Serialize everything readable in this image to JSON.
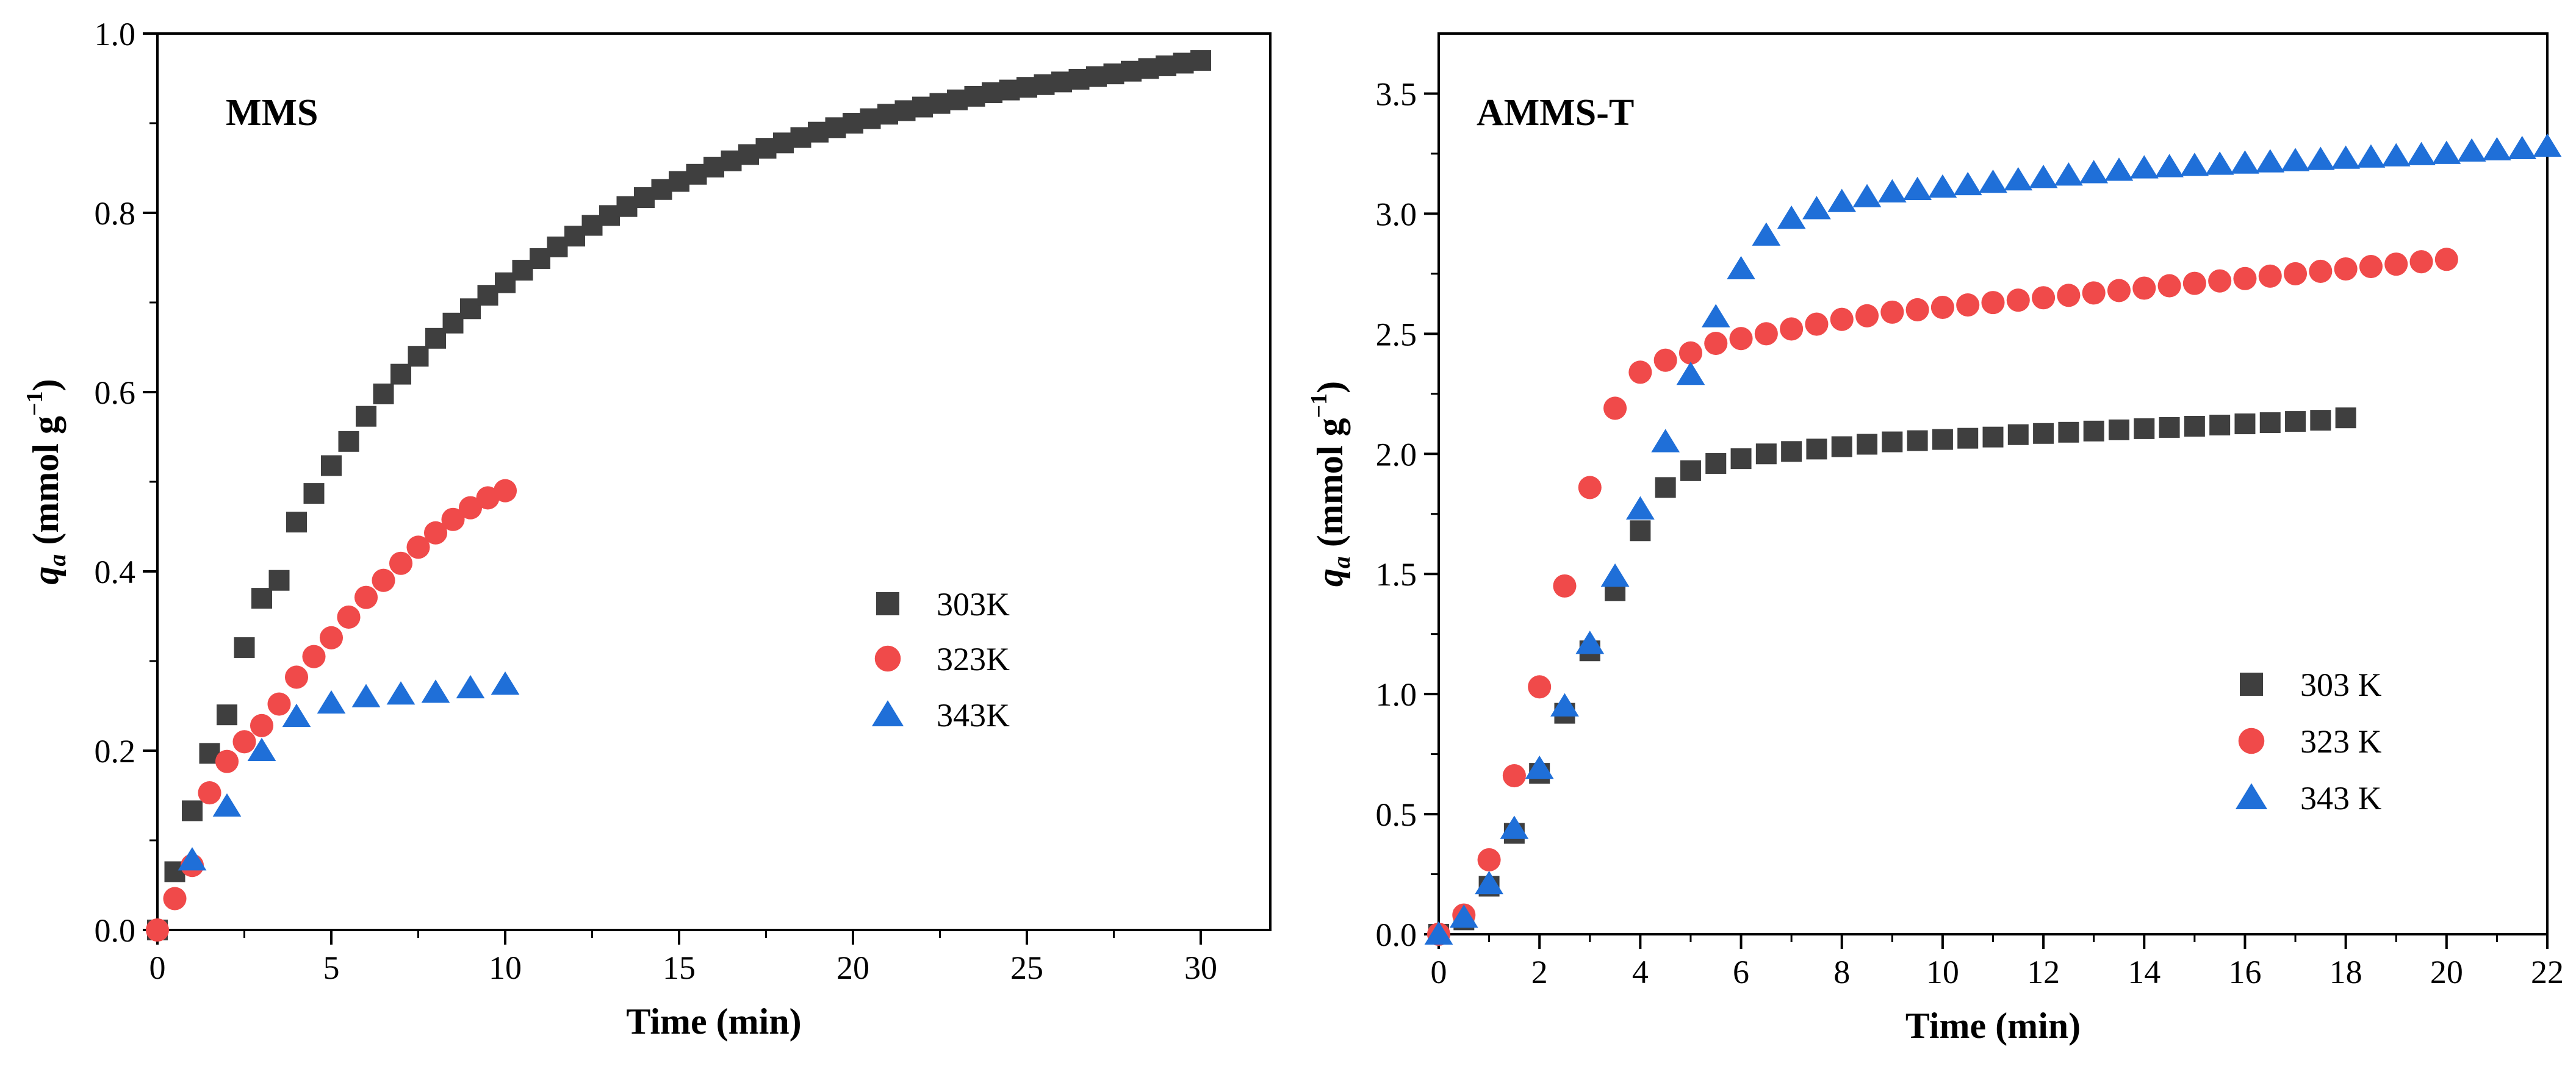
{
  "chart_data": [
    {
      "type": "scatter",
      "title": "MMS",
      "xlabel": "Time (min)",
      "ylabel_main": "q",
      "ylabel_sub": "a",
      "ylabel_unit_prefix": " (mmol g",
      "ylabel_unit_sup": "−1",
      "ylabel_unit_suffix": ")",
      "xlim": [
        0,
        32
      ],
      "ylim": [
        0,
        1.0
      ],
      "xticks": [
        0,
        5,
        10,
        15,
        20,
        25,
        30
      ],
      "xtick_labels": [
        "0",
        "5",
        "10",
        "15",
        "20",
        "25",
        "30"
      ],
      "yticks": [
        0,
        0.2,
        0.4,
        0.6,
        0.8,
        1.0
      ],
      "ytick_labels": [
        "0.0",
        "0.2",
        "0.4",
        "0.6",
        "0.8",
        "1.0"
      ],
      "legend_position": "center-right",
      "series": [
        {
          "name": "303K",
          "marker": "square",
          "color": "#3f3f3f",
          "x": [
            0,
            0.5,
            1,
            1.5,
            2,
            2.5,
            3,
            3.5,
            4,
            4.5,
            5,
            5.5,
            6,
            6.5,
            7,
            7.5,
            8,
            8.5,
            9,
            9.5,
            10,
            10.5,
            11,
            11.5,
            12,
            12.5,
            13,
            13.5,
            14,
            14.5,
            15,
            15.5,
            16,
            16.5,
            17,
            17.5,
            18,
            18.5,
            19,
            19.5,
            20,
            20.5,
            21,
            21.5,
            22,
            22.5,
            23,
            23.5,
            24,
            24.5,
            25,
            25.5,
            26,
            26.5,
            27,
            27.5,
            28,
            28.5,
            29,
            29.5,
            30
          ],
          "y": [
            0,
            0.065,
            0.133,
            0.197,
            0.24,
            0.315,
            0.37,
            0.39,
            0.455,
            0.487,
            0.518,
            0.545,
            0.573,
            0.598,
            0.62,
            0.64,
            0.66,
            0.677,
            0.693,
            0.708,
            0.722,
            0.736,
            0.749,
            0.762,
            0.774,
            0.786,
            0.797,
            0.807,
            0.817,
            0.826,
            0.835,
            0.843,
            0.851,
            0.858,
            0.865,
            0.872,
            0.878,
            0.884,
            0.89,
            0.895,
            0.9,
            0.905,
            0.91,
            0.914,
            0.918,
            0.922,
            0.926,
            0.93,
            0.934,
            0.937,
            0.94,
            0.943,
            0.946,
            0.949,
            0.952,
            0.955,
            0.958,
            0.961,
            0.964,
            0.967,
            0.97
          ]
        },
        {
          "name": "323K",
          "marker": "circle",
          "color": "#f04a4a",
          "x": [
            0,
            0.5,
            1,
            1.5,
            2,
            2.5,
            3,
            3.5,
            4,
            4.5,
            5,
            5.5,
            6,
            6.5,
            7,
            7.5,
            8,
            8.5,
            9,
            9.5,
            10
          ],
          "y": [
            0,
            0.035,
            0.072,
            0.153,
            0.188,
            0.21,
            0.228,
            0.252,
            0.282,
            0.305,
            0.326,
            0.349,
            0.371,
            0.39,
            0.409,
            0.427,
            0.443,
            0.458,
            0.471,
            0.482,
            0.49
          ]
        },
        {
          "name": "343K",
          "marker": "triangle",
          "color": "#1f6fd8",
          "x": [
            1,
            2,
            3,
            4,
            5,
            6,
            7,
            8,
            9,
            10
          ],
          "y": [
            0.078,
            0.138,
            0.2,
            0.238,
            0.253,
            0.26,
            0.263,
            0.265,
            0.27,
            0.274
          ]
        }
      ]
    },
    {
      "type": "scatter",
      "title": "AMMS-T",
      "xlabel": "Time (min)",
      "ylabel_main": "q",
      "ylabel_sub": "a",
      "ylabel_unit_prefix": " (mmol g",
      "ylabel_unit_sup": "−1",
      "ylabel_unit_suffix": ")",
      "xlim": [
        0,
        22
      ],
      "ylim": [
        0,
        3.75
      ],
      "xticks": [
        0,
        2,
        4,
        6,
        8,
        10,
        12,
        14,
        16,
        18,
        20,
        22
      ],
      "xtick_labels": [
        "0",
        "2",
        "4",
        "6",
        "8",
        "10",
        "12",
        "14",
        "16",
        "18",
        "20",
        "22"
      ],
      "yticks": [
        0,
        0.5,
        1.0,
        1.5,
        2.0,
        2.5,
        3.0,
        3.5
      ],
      "ytick_labels": [
        "0.0",
        "0.5",
        "1.0",
        "1.5",
        "2.0",
        "2.5",
        "3.0",
        "3.5"
      ],
      "legend_position": "bottom-right",
      "series": [
        {
          "name": "303 K",
          "marker": "square",
          "color": "#3f3f3f",
          "x": [
            0,
            0.5,
            1,
            1.5,
            2,
            2.5,
            3,
            3.5,
            4,
            4.5,
            5,
            5.5,
            6,
            6.5,
            7,
            7.5,
            8,
            8.5,
            9,
            9.5,
            10,
            10.5,
            11,
            11.5,
            12,
            12.5,
            13,
            13.5,
            14,
            14.5,
            15,
            15.5,
            16,
            16.5,
            17,
            17.5,
            18
          ],
          "y": [
            0,
            0.06,
            0.2,
            0.42,
            0.67,
            0.92,
            1.18,
            1.43,
            1.68,
            1.86,
            1.93,
            1.96,
            1.98,
            2.0,
            2.01,
            2.02,
            2.03,
            2.04,
            2.05,
            2.055,
            2.06,
            2.065,
            2.07,
            2.08,
            2.085,
            2.09,
            2.095,
            2.1,
            2.105,
            2.11,
            2.115,
            2.12,
            2.125,
            2.13,
            2.135,
            2.14,
            2.15
          ]
        },
        {
          "name": "323 K",
          "marker": "circle",
          "color": "#f04a4a",
          "x": [
            0,
            0.5,
            1,
            1.5,
            2,
            2.5,
            3,
            3.5,
            4,
            4.5,
            5,
            5.5,
            6,
            6.5,
            7,
            7.5,
            8,
            8.5,
            9,
            9.5,
            10,
            10.5,
            11,
            11.5,
            12,
            12.5,
            13,
            13.5,
            14,
            14.5,
            15,
            15.5,
            16,
            16.5,
            17,
            17.5,
            18,
            18.5,
            19,
            19.5,
            20
          ],
          "y": [
            0,
            0.08,
            0.31,
            0.66,
            1.03,
            1.45,
            1.86,
            2.19,
            2.34,
            2.39,
            2.42,
            2.46,
            2.48,
            2.5,
            2.52,
            2.54,
            2.56,
            2.575,
            2.59,
            2.6,
            2.61,
            2.62,
            2.63,
            2.64,
            2.65,
            2.66,
            2.67,
            2.68,
            2.69,
            2.7,
            2.71,
            2.72,
            2.73,
            2.74,
            2.75,
            2.76,
            2.77,
            2.78,
            2.79,
            2.8,
            2.81
          ]
        },
        {
          "name": "343 K",
          "marker": "triangle",
          "color": "#1f6fd8",
          "x": [
            0,
            0.5,
            1,
            1.5,
            2,
            2.5,
            3,
            3.5,
            4,
            4.5,
            5,
            5.5,
            6,
            6.5,
            7,
            7.5,
            8,
            8.5,
            9,
            9.5,
            10,
            10.5,
            11,
            11.5,
            12,
            12.5,
            13,
            13.5,
            14,
            14.5,
            15,
            15.5,
            16,
            16.5,
            17,
            17.5,
            18,
            18.5,
            19,
            19.5,
            20,
            20.5,
            21,
            21.5,
            22
          ],
          "y": [
            0,
            0.07,
            0.21,
            0.44,
            0.69,
            0.95,
            1.21,
            1.49,
            1.77,
            2.05,
            2.33,
            2.57,
            2.77,
            2.91,
            2.98,
            3.02,
            3.05,
            3.07,
            3.09,
            3.1,
            3.11,
            3.12,
            3.13,
            3.14,
            3.15,
            3.16,
            3.17,
            3.18,
            3.19,
            3.195,
            3.2,
            3.205,
            3.21,
            3.215,
            3.22,
            3.225,
            3.23,
            3.235,
            3.24,
            3.245,
            3.25,
            3.26,
            3.265,
            3.27,
            3.28
          ]
        }
      ]
    }
  ]
}
